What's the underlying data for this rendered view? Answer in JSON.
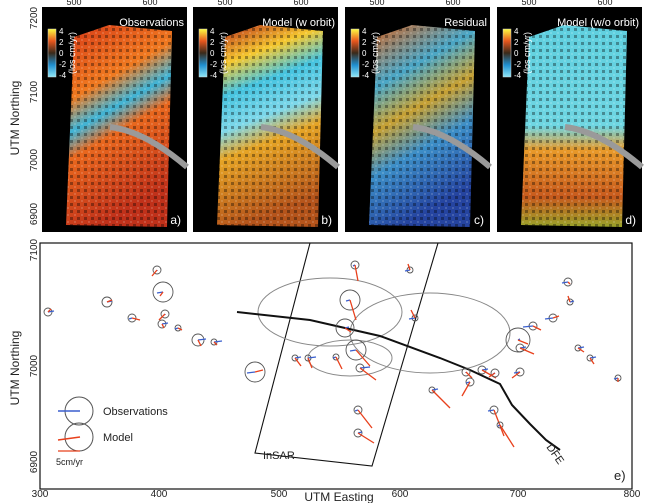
{
  "figure": {
    "top_ylabel": "UTM Northing",
    "top_yticks": [
      "7200",
      "7100",
      "7000",
      "6900"
    ],
    "top_xticks": [
      "500",
      "600"
    ],
    "colorbar_ticks": [
      "4",
      "2",
      "0",
      "-2",
      "-4"
    ],
    "colorbar_unit": "(los cm/yr)",
    "panels": [
      {
        "title": "Observations",
        "letter": "a)",
        "style": "obs"
      },
      {
        "title": "Model (w orbit)",
        "letter": "b)",
        "style": "model"
      },
      {
        "title": "Residual",
        "letter": "c)",
        "style": "res"
      },
      {
        "title": "Model (w/o orbit)",
        "letter": "d)",
        "style": "noorb"
      }
    ],
    "bottom": {
      "ylabel": "UTM Northing",
      "xlabel": "UTM Easting",
      "yticks": [
        "7100",
        "7000",
        "6900"
      ],
      "xticks": [
        "300",
        "400",
        "500",
        "600",
        "700",
        "800"
      ],
      "legend_observations": "Observations",
      "legend_model": "Model",
      "legend_scale": "5cm/yr",
      "insar_label": "InSAR",
      "fault_label": "DFE",
      "letter": "e)"
    },
    "colors": {
      "observation_arrow": "#3a5fcd",
      "model_arrow": "#e8401c",
      "panel_bg": "#000000"
    }
  }
}
